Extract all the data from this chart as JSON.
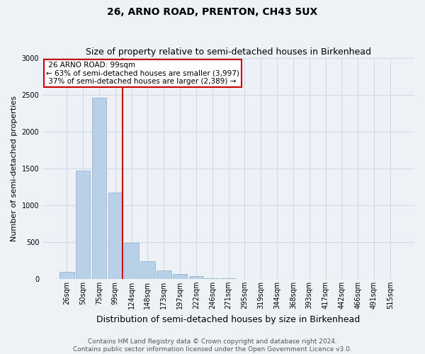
{
  "title": "26, ARNO ROAD, PRENTON, CH43 5UX",
  "subtitle": "Size of property relative to semi-detached houses in Birkenhead",
  "xlabel": "Distribution of semi-detached houses by size in Birkenhead",
  "ylabel": "Number of semi-detached properties",
  "footer_line1": "Contains HM Land Registry data © Crown copyright and database right 2024.",
  "footer_line2": "Contains public sector information licensed under the Open Government Licence v3.0.",
  "categories": [
    "26sqm",
    "50sqm",
    "75sqm",
    "99sqm",
    "124sqm",
    "148sqm",
    "173sqm",
    "197sqm",
    "222sqm",
    "246sqm",
    "271sqm",
    "295sqm",
    "319sqm",
    "344sqm",
    "368sqm",
    "393sqm",
    "417sqm",
    "442sqm",
    "466sqm",
    "491sqm",
    "515sqm"
  ],
  "values": [
    95,
    1470,
    2460,
    1170,
    490,
    235,
    115,
    65,
    35,
    10,
    5,
    3,
    2,
    0,
    2,
    0,
    0,
    1,
    0,
    0,
    0
  ],
  "bar_color": "#b8d0e8",
  "bar_edge_color": "#8ab0cc",
  "property_sqm": 99,
  "property_label": "26 ARNO ROAD: 99sqm",
  "pct_smaller": 63,
  "pct_larger": 37,
  "count_smaller": 3997,
  "count_larger": 2389,
  "annotation_box_color": "#ffffff",
  "annotation_box_edge": "#cc0000",
  "vline_color": "#cc0000",
  "ylim": [
    0,
    3000
  ],
  "yticks": [
    0,
    500,
    1000,
    1500,
    2000,
    2500,
    3000
  ],
  "grid_color": "#d0d8e0",
  "bg_color": "#eef2f6",
  "title_fontsize": 10,
  "subtitle_fontsize": 9,
  "xlabel_fontsize": 9,
  "ylabel_fontsize": 8,
  "tick_fontsize": 7,
  "footer_fontsize": 6.5,
  "annot_fontsize": 7.5
}
